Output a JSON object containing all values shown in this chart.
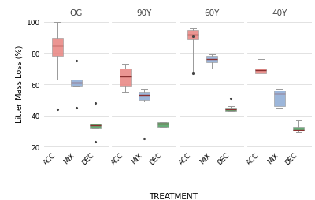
{
  "panels": [
    "OG",
    "90Y",
    "60Y",
    "40Y"
  ],
  "treatments": [
    "ACC",
    "MIX",
    "DEC"
  ],
  "colors": {
    "ACC": "#E8837F",
    "MIX": "#8BAAD4",
    "DEC": "#4B9E5F"
  },
  "box_data": {
    "OG": {
      "ACC": {
        "q1": 78,
        "median": 85,
        "q3": 90,
        "whislo": 63,
        "whishi": 100,
        "fliers": [
          44
        ]
      },
      "MIX": {
        "q1": 59,
        "median": 61,
        "q3": 63,
        "whislo": 59,
        "whishi": 63,
        "fliers": [
          45,
          75
        ]
      },
      "DEC": {
        "q1": 32,
        "median": 34,
        "q3": 35,
        "whislo": 32,
        "whishi": 35,
        "fliers": [
          23,
          48
        ]
      }
    },
    "90Y": {
      "ACC": {
        "q1": 59,
        "median": 65,
        "q3": 70,
        "whislo": 55,
        "whishi": 73,
        "fliers": []
      },
      "MIX": {
        "q1": 50,
        "median": 53,
        "q3": 55,
        "whislo": 49,
        "whishi": 57,
        "fliers": [
          25
        ]
      },
      "DEC": {
        "q1": 33,
        "median": 35,
        "q3": 36,
        "whislo": 33,
        "whishi": 36,
        "fliers": []
      }
    },
    "60Y": {
      "ACC": {
        "q1": 89,
        "median": 92,
        "q3": 95,
        "whislo": 68,
        "whishi": 96,
        "fliers": [
          67,
          91
        ]
      },
      "MIX": {
        "q1": 74,
        "median": 76,
        "q3": 78,
        "whislo": 70,
        "whishi": 79,
        "fliers": []
      },
      "DEC": {
        "q1": 43,
        "median": 44,
        "q3": 45,
        "whislo": 43,
        "whishi": 46,
        "fliers": [
          51
        ]
      }
    },
    "40Y": {
      "ACC": {
        "q1": 67,
        "median": 69,
        "q3": 70,
        "whislo": 63,
        "whishi": 76,
        "fliers": []
      },
      "MIX": {
        "q1": 46,
        "median": 54,
        "q3": 56,
        "whislo": 45,
        "whishi": 57,
        "fliers": []
      },
      "DEC": {
        "q1": 30,
        "median": 31,
        "q3": 33,
        "whislo": 29,
        "whishi": 37,
        "fliers": []
      }
    }
  },
  "ylabel": "Litter Mass Loss (%)",
  "xlabel": "TREATMENT",
  "ylim": [
    18,
    103
  ],
  "yticks": [
    20,
    40,
    60,
    80,
    100
  ],
  "background_color": "#ffffff",
  "grid_color": "#dddddd",
  "median_color": "#8B3030",
  "whisker_color": "#999999",
  "flier_color": "#444444"
}
